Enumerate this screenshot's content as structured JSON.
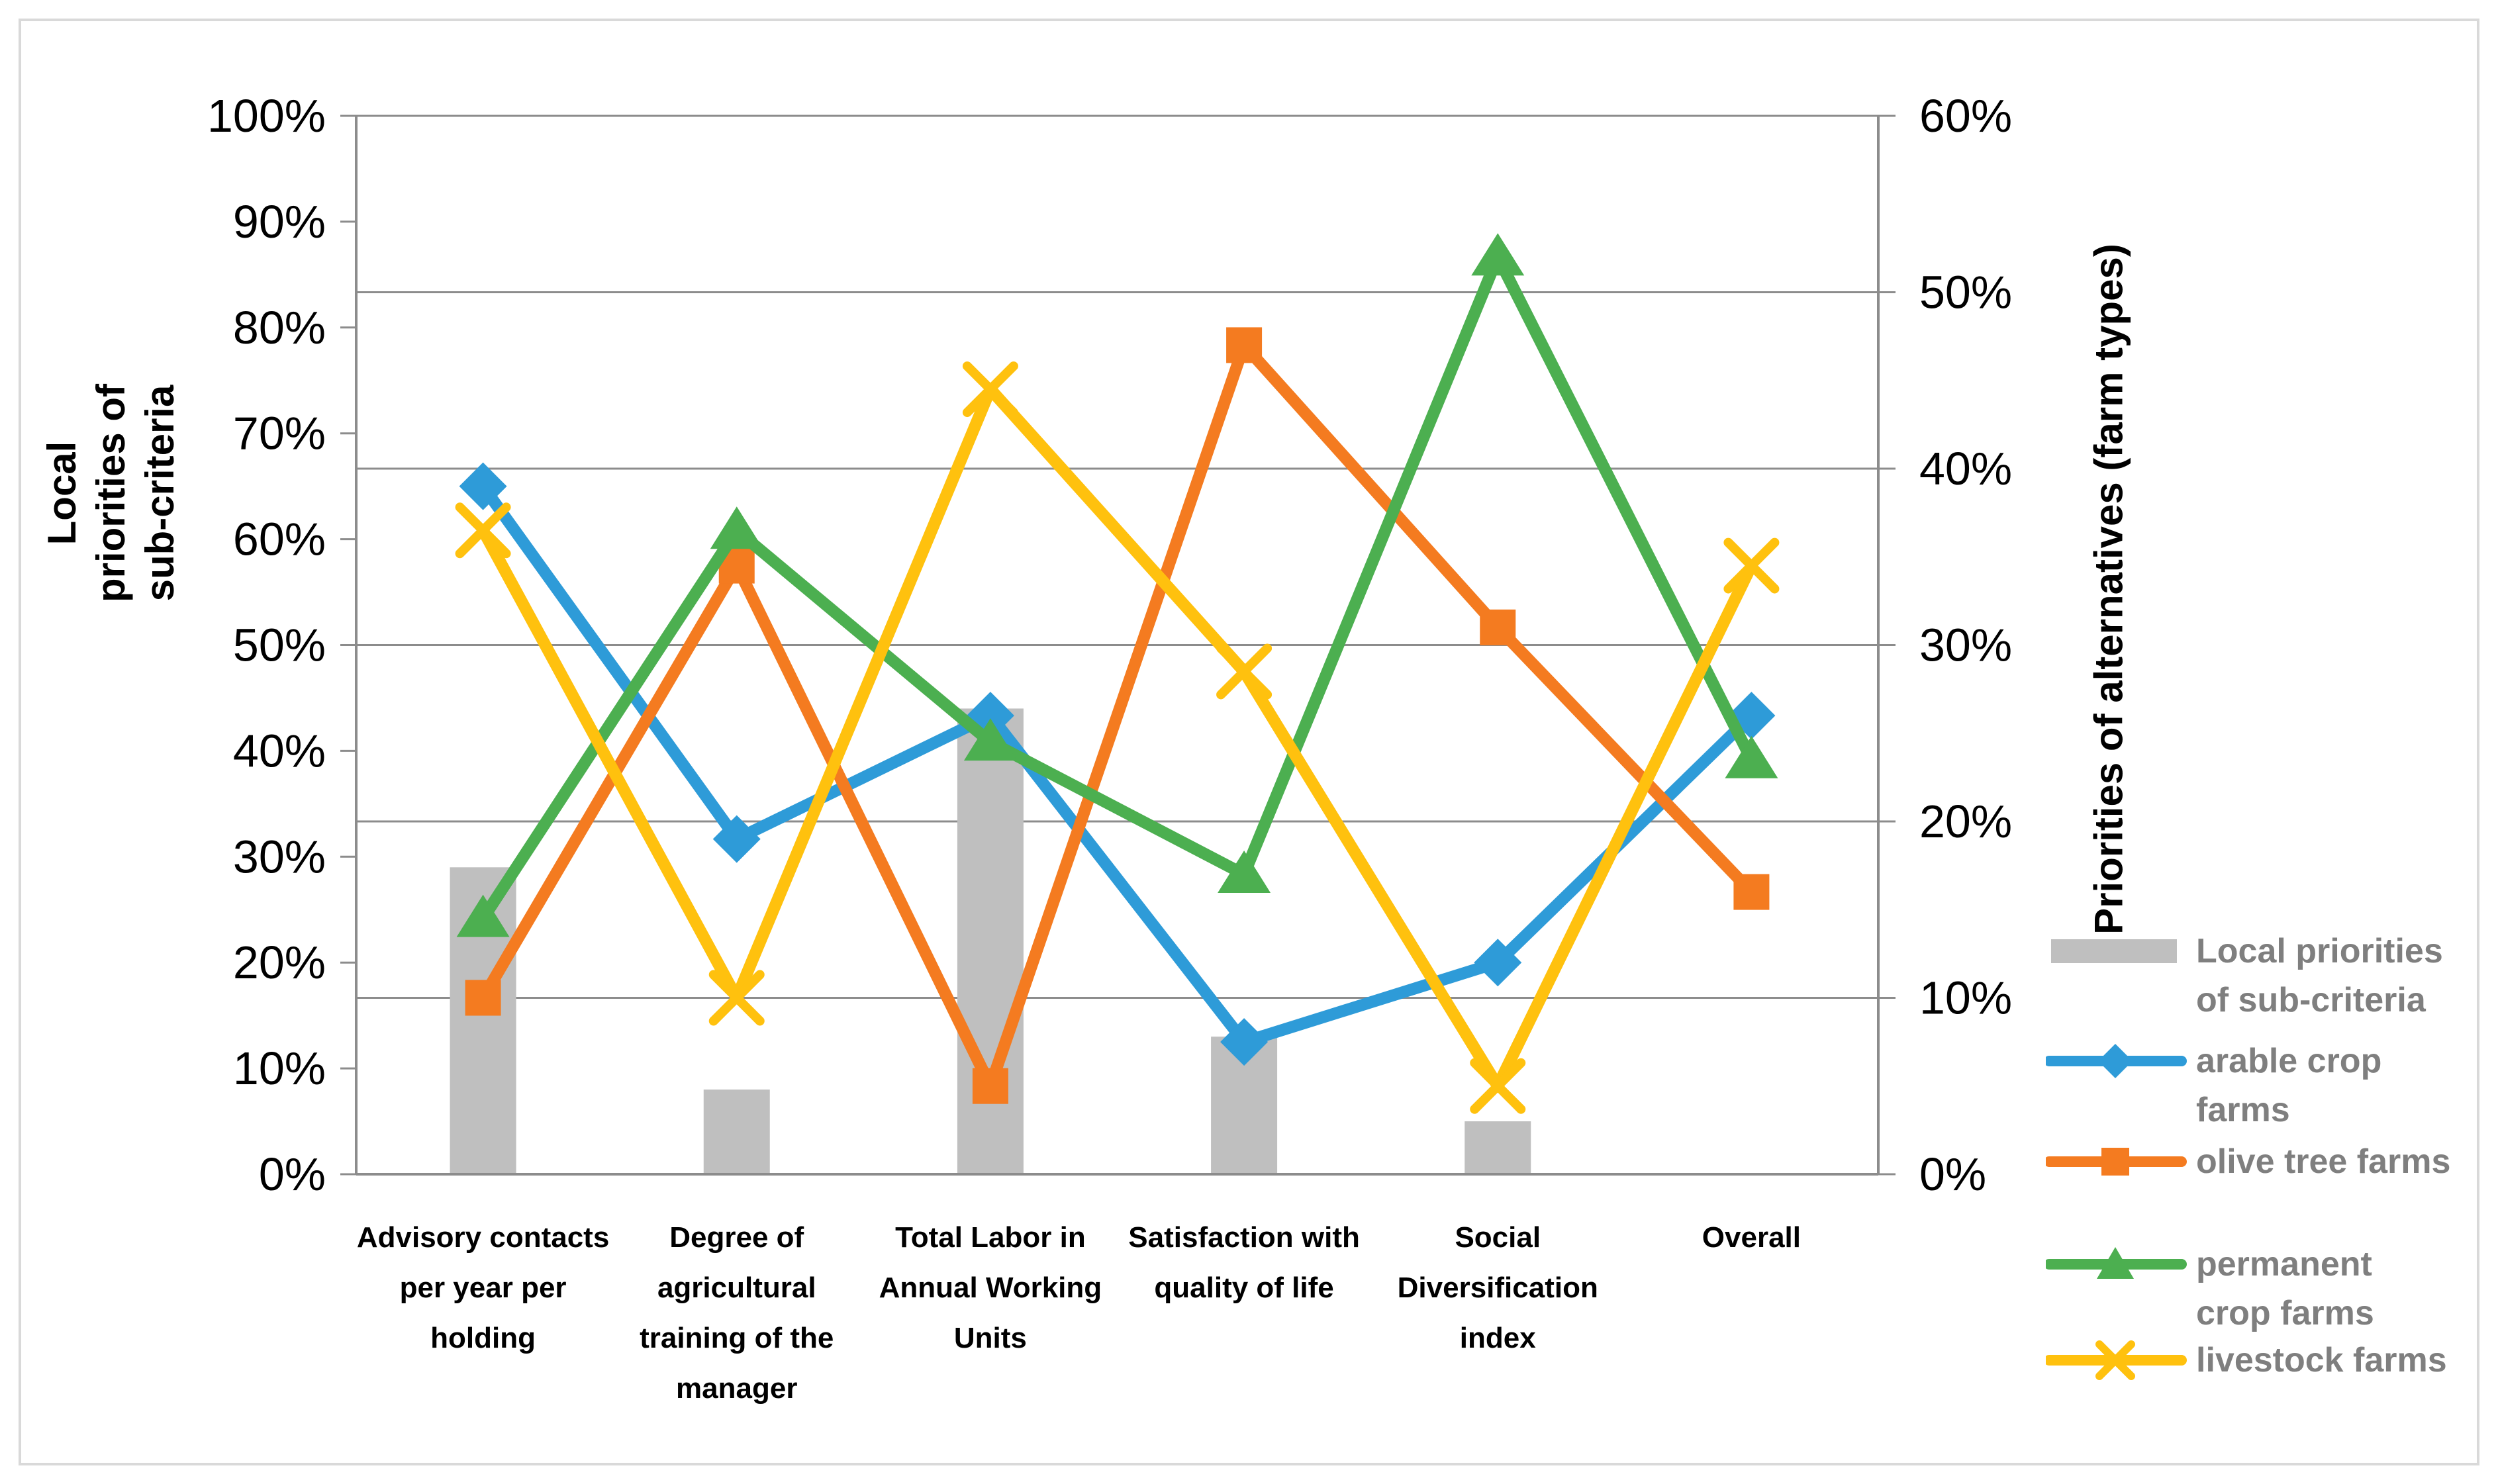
{
  "chart_data": {
    "type": "combo bar+line",
    "categories": [
      {
        "label": "Advisory contacts per year per holding",
        "label_lines": [
          "Advisory contacts",
          "per year per",
          "holding"
        ]
      },
      {
        "label": "Degree of agricultural training of the manager",
        "label_lines": [
          "Degree of",
          "agricultural",
          "training of the",
          "manager"
        ]
      },
      {
        "label": "Total Labor in Annual Working Units",
        "label_lines": [
          "Total Labor in",
          "Annual Working",
          "Units"
        ]
      },
      {
        "label": "Satisfaction with quality of life",
        "label_lines": [
          "Satisfaction with",
          "quality of life"
        ]
      },
      {
        "label": "Social Diversification index",
        "label_lines": [
          "Social",
          "Diversification",
          "index"
        ]
      },
      {
        "label": "Overall",
        "label_lines": [
          "Overall"
        ]
      }
    ],
    "bar_series": {
      "name": "Local priorities of sub-criteria",
      "axis": "left",
      "color": "#bfbfbf",
      "values_percent": [
        29,
        8,
        44,
        13,
        5,
        null
      ]
    },
    "line_series": [
      {
        "name": "arable crop farms",
        "marker": "diamond",
        "color": "#2e9bd8",
        "axis": "right",
        "values_percent": [
          39,
          19,
          26,
          7.5,
          12,
          26
        ]
      },
      {
        "name": "olive tree farms",
        "marker": "square",
        "color": "#f47b20",
        "axis": "right",
        "values_percent": [
          10,
          34.5,
          5,
          47,
          31,
          16
        ]
      },
      {
        "name": "permanent crop farms",
        "marker": "triangle",
        "color": "#4caf50",
        "axis": "right",
        "values_percent": [
          14.5,
          36.5,
          24.5,
          17,
          52,
          23.5
        ]
      },
      {
        "name": "livestock farms",
        "marker": "x",
        "color": "#ffc10e",
        "axis": "right",
        "values_percent": [
          36.5,
          10,
          44.5,
          28.5,
          5,
          34.5
        ]
      }
    ],
    "left_axis": {
      "title": "Local priorities of sub-criteria",
      "title_lines": [
        "Local",
        "priorities of",
        "sub-criteria"
      ],
      "min": 0,
      "max": 100,
      "step": 10,
      "tick_labels": [
        "0%",
        "10%",
        "20%",
        "30%",
        "40%",
        "50%",
        "60%",
        "70%",
        "80%",
        "90%",
        "100%"
      ]
    },
    "right_axis": {
      "title": "Priorities of alternatives (farm types)",
      "min": 0,
      "max": 60,
      "step": 10,
      "tick_labels": [
        "0%",
        "10%",
        "20%",
        "30%",
        "40%",
        "50%",
        "60%"
      ]
    },
    "grid": "horizontal gridlines on (every 10% of right axis)",
    "legend_position": "right",
    "colors": {
      "gridline": "#8c8c8c",
      "axis_line": "#8c8c8c",
      "tick_text": "#000000",
      "category_text": "#000000",
      "legend_text": "#7f7f7f",
      "frame_border": "#d9d9d9",
      "background": "#ffffff"
    }
  },
  "legend": {
    "items": [
      {
        "swatch": "bar",
        "color": "#bfbfbf",
        "label": "Local priorities of sub-criteria",
        "label_lines": [
          "Local priorities",
          "of sub-criteria"
        ]
      },
      {
        "swatch": "line",
        "marker": "diamond",
        "color": "#2e9bd8",
        "label": "arable crop farms",
        "label_lines": [
          "arable crop",
          "farms"
        ]
      },
      {
        "swatch": "line",
        "marker": "square",
        "color": "#f47b20",
        "label": "olive tree farms",
        "label_lines": [
          "olive tree farms"
        ]
      },
      {
        "swatch": "line",
        "marker": "triangle",
        "color": "#4caf50",
        "label": "permanent crop farms",
        "label_lines": [
          "permanent",
          "crop farms"
        ]
      },
      {
        "swatch": "line",
        "marker": "x",
        "color": "#ffc10e",
        "label": "livestock farms",
        "label_lines": [
          "livestock farms"
        ]
      }
    ]
  }
}
